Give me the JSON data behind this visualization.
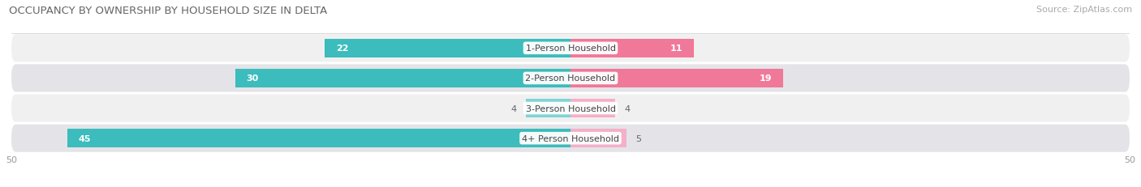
{
  "title": "OCCUPANCY BY OWNERSHIP BY HOUSEHOLD SIZE IN DELTA",
  "source": "Source: ZipAtlas.com",
  "categories": [
    "1-Person Household",
    "2-Person Household",
    "3-Person Household",
    "4+ Person Household"
  ],
  "owner_values": [
    22,
    30,
    4,
    45
  ],
  "renter_values": [
    11,
    19,
    4,
    5
  ],
  "owner_color": "#3cbcbc",
  "renter_color": "#f07898",
  "owner_color_light": "#80d4d4",
  "renter_color_light": "#f4b0c8",
  "row_bg_color_odd": "#f0f0f0",
  "row_bg_color_even": "#e4e4e8",
  "axis_max": 50,
  "label_color_dark": "#666666",
  "title_color": "#666666",
  "source_color": "#aaaaaa",
  "figsize": [
    14.06,
    2.32
  ],
  "dpi": 100
}
